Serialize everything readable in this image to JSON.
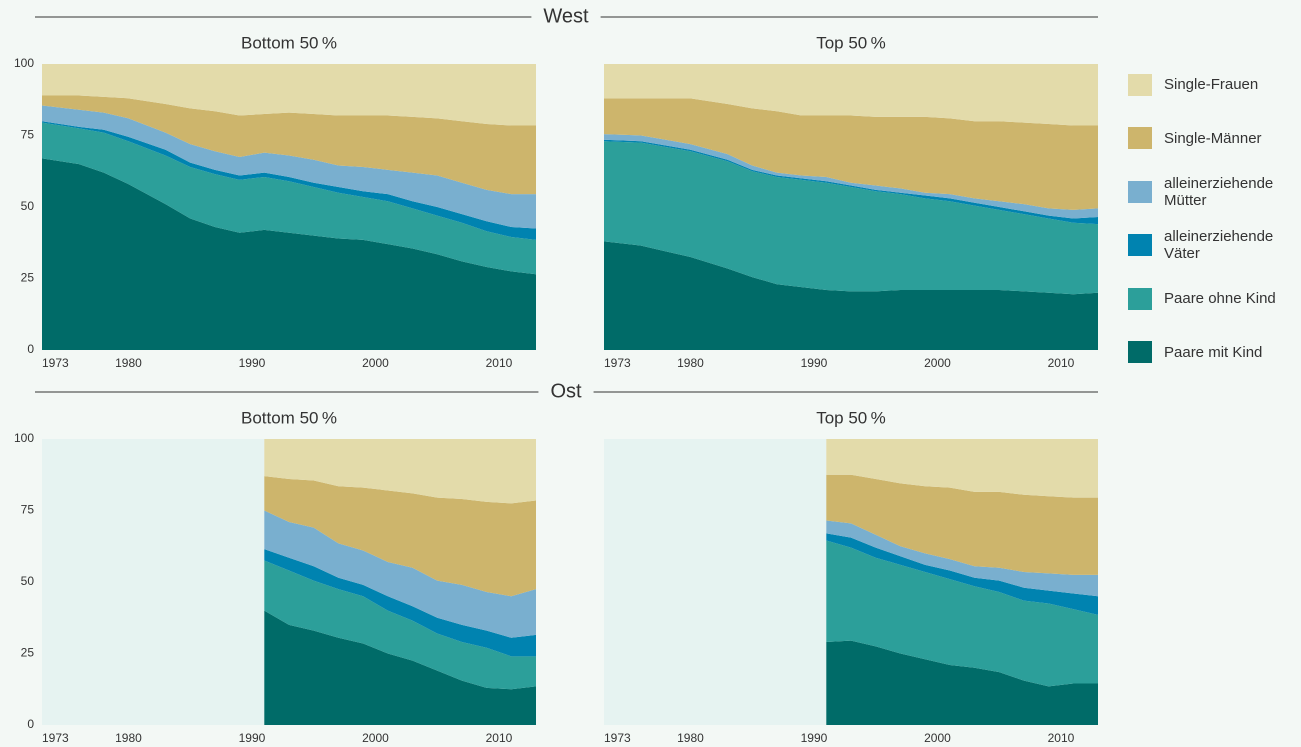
{
  "chart_data": [
    {
      "type": "area",
      "stacked": true,
      "group": "West",
      "title": "Bottom 50 %",
      "x": [
        1973,
        1976,
        1978,
        1980,
        1983,
        1985,
        1987,
        1989,
        1991,
        1993,
        1995,
        1997,
        1999,
        2001,
        2003,
        2005,
        2007,
        2009,
        2011,
        2013
      ],
      "xlim": [
        1973,
        2013
      ],
      "xticks": [
        1973,
        1980,
        1990,
        2000,
        2010
      ],
      "ylim": [
        0,
        100
      ],
      "yticks": [
        0,
        25,
        50,
        75,
        100
      ],
      "series": [
        {
          "name": "Paare mit Kind",
          "color": "#006b68",
          "values": [
            67,
            65,
            62,
            58,
            51,
            46,
            43,
            41,
            42,
            41,
            40,
            39,
            38.5,
            37,
            35.5,
            33.5,
            31,
            29,
            27.5,
            26.5
          ]
        },
        {
          "name": "Paare ohne Kind",
          "color": "#2c9f9a",
          "values": [
            12.5,
            12.5,
            14,
            15,
            17,
            18,
            18.5,
            18.5,
            18.5,
            18,
            17,
            16,
            15,
            15,
            14,
            13.5,
            13.5,
            12.5,
            12,
            12
          ]
        },
        {
          "name": "alleinerziehende Väter",
          "color": "#0083b0",
          "values": [
            0.5,
            0.5,
            1,
            1.5,
            2,
            1.5,
            1.5,
            1.5,
            1.5,
            1.5,
            1.5,
            2,
            2,
            2.5,
            2.5,
            3,
            3,
            3.5,
            3.5,
            4
          ]
        },
        {
          "name": "alleinerziehende Mütter",
          "color": "#79afcf",
          "values": [
            5.5,
            6,
            6,
            6.5,
            6,
            6.5,
            6.5,
            6.5,
            7,
            7.5,
            8,
            7.5,
            8.5,
            8.5,
            10,
            11,
            11,
            11,
            11.5,
            12
          ]
        },
        {
          "name": "Single-Männer",
          "color": "#cdb56c",
          "values": [
            3.5,
            5,
            5.5,
            7,
            10,
            12.5,
            14,
            14.5,
            13.5,
            15,
            16,
            17.5,
            18,
            19,
            19.5,
            20,
            21.5,
            23,
            24,
            24
          ]
        },
        {
          "name": "Single-Frauen",
          "color": "#e3dbaa",
          "values": [
            11,
            11,
            11.5,
            12,
            14,
            15.5,
            16.5,
            18,
            17.5,
            17,
            17.5,
            18,
            18,
            18,
            18.5,
            19,
            20,
            21,
            21.5,
            21.5
          ]
        }
      ]
    },
    {
      "type": "area",
      "stacked": true,
      "title": "Top 50 %",
      "x": [
        1973,
        1976,
        1978,
        1980,
        1983,
        1985,
        1987,
        1989,
        1991,
        1993,
        1995,
        1997,
        1999,
        2001,
        2003,
        2005,
        2007,
        2009,
        2011,
        2013
      ],
      "xlim": [
        1973,
        2013
      ],
      "xticks": [
        1973,
        1980,
        1990,
        2000,
        2010
      ],
      "ylim": [
        0,
        100
      ],
      "series": [
        {
          "name": "Paare mit Kind",
          "color": "#006b68",
          "values": [
            38,
            36.5,
            34.5,
            32.5,
            28.5,
            25.5,
            23,
            22,
            21,
            20.5,
            20.5,
            21,
            21,
            21,
            21,
            21,
            20.5,
            20,
            19.5,
            20
          ]
        },
        {
          "name": "Paare ohne Kind",
          "color": "#2c9f9a",
          "values": [
            35,
            36,
            36.5,
            37,
            37.5,
            37,
            37.5,
            37.5,
            37.5,
            36.5,
            35,
            33.5,
            32,
            31,
            29.5,
            28,
            27,
            26,
            25,
            24
          ]
        },
        {
          "name": "alleinerziehende Väter",
          "color": "#0083b0",
          "values": [
            0.5,
            0.5,
            0.5,
            0.5,
            0.5,
            0.5,
            0.5,
            0.5,
            0.5,
            0.5,
            0.5,
            0.5,
            1,
            1,
            1,
            1,
            1,
            1,
            1.5,
            2.5
          ]
        },
        {
          "name": "alleinerziehende Mütter",
          "color": "#79afcf",
          "values": [
            2,
            2,
            2,
            2,
            2,
            1.5,
            1,
            1,
            1.5,
            1,
            1.5,
            1.5,
            1,
            1.5,
            1.5,
            2,
            2.5,
            2.5,
            3,
            3
          ]
        },
        {
          "name": "Single-Männer",
          "color": "#cdb56c",
          "values": [
            12.5,
            13,
            14.5,
            16,
            17.5,
            20,
            21.5,
            21,
            21.5,
            23.5,
            24,
            25,
            26.5,
            26.5,
            27,
            28,
            28.5,
            29.5,
            29.5,
            29
          ]
        },
        {
          "name": "Single-Frauen",
          "color": "#e3dbaa",
          "values": [
            12,
            12,
            12,
            12,
            14,
            15.5,
            16.5,
            18,
            18,
            18,
            18.5,
            18.5,
            18.5,
            19,
            20,
            20,
            20.5,
            21,
            21.5,
            21.5
          ]
        }
      ]
    },
    {
      "type": "area",
      "stacked": true,
      "group": "Ost",
      "title": "Bottom 50 %",
      "x": [
        1991,
        1993,
        1995,
        1997,
        1999,
        2001,
        2003,
        2005,
        2007,
        2009,
        2011,
        2013
      ],
      "xlim": [
        1973,
        2013
      ],
      "xticks": [
        1973,
        1980,
        1990,
        2000,
        2010
      ],
      "ylim": [
        0,
        100
      ],
      "yticks": [
        0,
        25,
        50,
        75,
        100
      ],
      "series": [
        {
          "name": "Paare mit Kind",
          "color": "#006b68",
          "values": [
            40,
            35,
            33,
            30.5,
            28.5,
            25,
            22.5,
            19,
            15.5,
            13,
            12.5,
            13.5
          ]
        },
        {
          "name": "Paare ohne Kind",
          "color": "#2c9f9a",
          "values": [
            17.5,
            19,
            17.5,
            17,
            16.5,
            15,
            14,
            13,
            13.5,
            14,
            11.5,
            10.5
          ]
        },
        {
          "name": "alleinerziehende Väter",
          "color": "#0083b0",
          "values": [
            4,
            4.5,
            5,
            4,
            4,
            5,
            5,
            5.5,
            6,
            6,
            6.5,
            7.5
          ]
        },
        {
          "name": "alleinerziehende Mütter",
          "color": "#79afcf",
          "values": [
            13.5,
            12.5,
            13.5,
            12,
            12,
            12,
            13.5,
            13,
            14,
            13.5,
            14.5,
            16
          ]
        },
        {
          "name": "Single-Männer",
          "color": "#cdb56c",
          "values": [
            12,
            15,
            16.5,
            20,
            22,
            25,
            26,
            29,
            30,
            31.5,
            32.5,
            31
          ]
        },
        {
          "name": "Single-Frauen",
          "color": "#e3dbaa",
          "values": [
            13,
            14,
            14.5,
            16.5,
            17,
            18,
            19,
            20.5,
            21,
            22,
            22.5,
            21.5
          ]
        }
      ]
    },
    {
      "type": "area",
      "stacked": true,
      "title": "Top 50 %",
      "x": [
        1991,
        1993,
        1995,
        1997,
        1999,
        2001,
        2003,
        2005,
        2007,
        2009,
        2011,
        2013
      ],
      "xlim": [
        1973,
        2013
      ],
      "xticks": [
        1973,
        1980,
        1990,
        2000,
        2010
      ],
      "ylim": [
        0,
        100
      ],
      "series": [
        {
          "name": "Paare mit Kind",
          "color": "#006b68",
          "values": [
            29,
            29.5,
            27.5,
            25,
            23,
            21,
            20,
            18.5,
            15.5,
            13.5,
            14.5,
            14.5
          ]
        },
        {
          "name": "Paare ohne Kind",
          "color": "#2c9f9a",
          "values": [
            35.5,
            32.5,
            31,
            31,
            30.5,
            30,
            28.5,
            28,
            28,
            29,
            26,
            24
          ]
        },
        {
          "name": "alleinerziehende Väter",
          "color": "#0083b0",
          "values": [
            2.5,
            3.5,
            3.5,
            3,
            2.5,
            3,
            3,
            4,
            4.5,
            4.5,
            5.5,
            6.5
          ]
        },
        {
          "name": "alleinerziehende Mütter",
          "color": "#79afcf",
          "values": [
            4.5,
            5,
            4.5,
            3.5,
            4,
            4,
            4,
            4.5,
            5.5,
            6,
            6.5,
            7.5
          ]
        },
        {
          "name": "Single-Männer",
          "color": "#cdb56c",
          "values": [
            16,
            17,
            19.5,
            22,
            23.5,
            25,
            26,
            26.5,
            27,
            27,
            27,
            27
          ]
        },
        {
          "name": "Single-Frauen",
          "color": "#e3dbaa",
          "values": [
            12.5,
            12.5,
            14,
            15.5,
            16.5,
            17,
            18.5,
            18.5,
            19.5,
            20,
            20.5,
            20.5
          ]
        }
      ]
    }
  ]
}
